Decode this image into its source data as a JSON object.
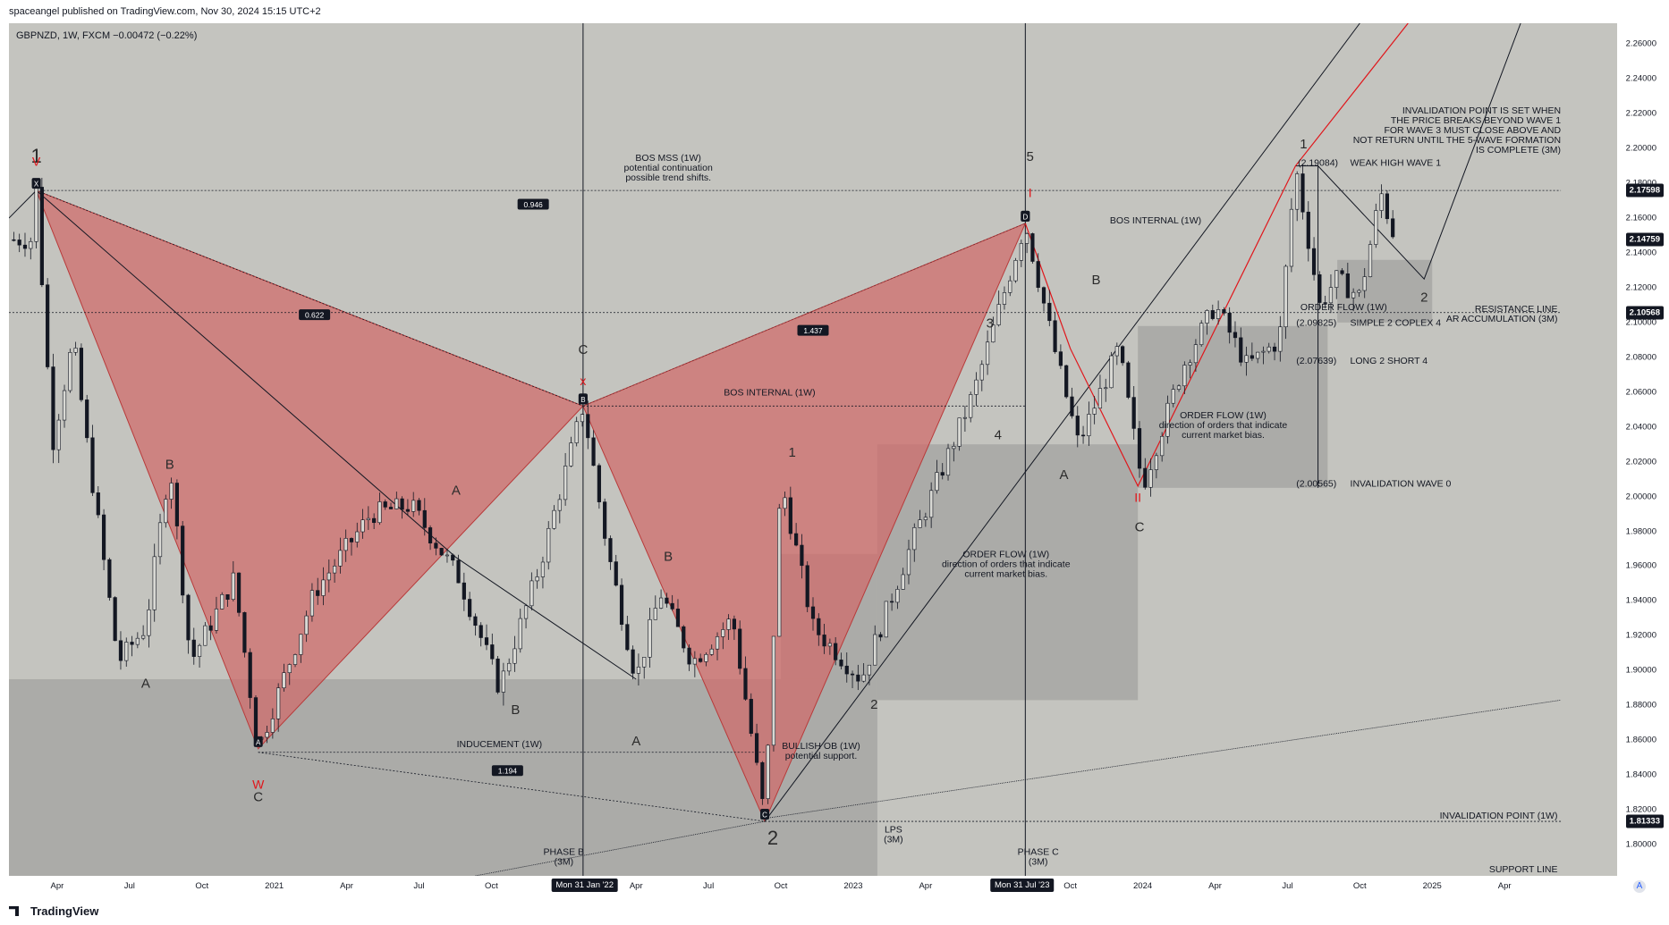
{
  "header": {
    "text": "spaceangel published on TradingView.com, Nov 30, 2024 15:15 UTC+2"
  },
  "symbol": {
    "text": "GBPNZD, 1W, FXCM  −0.00472 (−0.22%)"
  },
  "footer": {
    "logo_text": "TradingView",
    "logo_icon": "tradingview-logo-icon"
  },
  "axis_tag": "A",
  "colors": {
    "plot_bg": "#c4c4bf",
    "harmonic_fill": "#d06a6a",
    "harmonic_edge": "#b83a3a",
    "zone_fill": "#8f8f8b",
    "candle": "#131722",
    "red_line": "#e0161b",
    "label_bg": "#131722"
  },
  "chart_data": {
    "type": "candlestick",
    "title": "GBPNZD, 1W, FXCM",
    "change": "−0.00472 (−0.22%)",
    "ylim": [
      1.782,
      2.272
    ],
    "y_ticks": [
      1.8,
      1.82,
      1.84,
      1.86,
      1.88,
      1.9,
      1.92,
      1.94,
      1.96,
      1.98,
      2.0,
      2.02,
      2.04,
      2.06,
      2.08,
      2.1,
      2.12,
      2.14,
      2.16,
      2.18,
      2.2,
      2.22,
      2.24,
      2.26
    ],
    "x_ticks": [
      {
        "label": "Apr",
        "t": 0.03
      },
      {
        "label": "Jul",
        "t": 0.075
      },
      {
        "label": "Oct",
        "t": 0.12
      },
      {
        "label": "2021",
        "t": 0.165
      },
      {
        "label": "Apr",
        "t": 0.21
      },
      {
        "label": "Jul",
        "t": 0.255
      },
      {
        "label": "Oct",
        "t": 0.3
      },
      {
        "label": "Mon 31 Jan '22",
        "t": 0.358,
        "highlight": true
      },
      {
        "label": "Apr",
        "t": 0.39
      },
      {
        "label": "Jul",
        "t": 0.435
      },
      {
        "label": "Oct",
        "t": 0.48
      },
      {
        "label": "2023",
        "t": 0.525
      },
      {
        "label": "Apr",
        "t": 0.57
      },
      {
        "label": "Mon 31 Jul '23",
        "t": 0.63,
        "highlight": true
      },
      {
        "label": "Oct",
        "t": 0.66
      },
      {
        "label": "2024",
        "t": 0.705
      },
      {
        "label": "Apr",
        "t": 0.75
      },
      {
        "label": "Jul",
        "t": 0.795
      },
      {
        "label": "Oct",
        "t": 0.84
      },
      {
        "label": "2025",
        "t": 0.885
      },
      {
        "label": "Apr",
        "t": 0.93
      }
    ],
    "price_labels": [
      {
        "label": "2.17598",
        "price": 2.17598
      },
      {
        "label": "2.14759",
        "price": 2.14759
      },
      {
        "label": "2.10568",
        "price": 2.10568
      },
      {
        "label": "1.81333",
        "price": 1.81333
      }
    ],
    "pivots": [
      {
        "t": 0.017,
        "p": 2.1759
      },
      {
        "t": 0.027,
        "p": 2.03
      },
      {
        "t": 0.04,
        "p": 2.09
      },
      {
        "t": 0.05,
        "p": 2.02
      },
      {
        "t": 0.068,
        "p": 1.905
      },
      {
        "t": 0.085,
        "p": 1.925
      },
      {
        "t": 0.1,
        "p": 2.02
      },
      {
        "t": 0.113,
        "p": 1.905
      },
      {
        "t": 0.14,
        "p": 1.953
      },
      {
        "t": 0.155,
        "p": 1.855
      },
      {
        "t": 0.19,
        "p": 1.945
      },
      {
        "t": 0.225,
        "p": 1.99
      },
      {
        "t": 0.25,
        "p": 1.995
      },
      {
        "t": 0.28,
        "p": 1.953
      },
      {
        "t": 0.305,
        "p": 1.89
      },
      {
        "t": 0.33,
        "p": 1.96
      },
      {
        "t": 0.357,
        "p": 2.052
      },
      {
        "t": 0.372,
        "p": 1.97
      },
      {
        "t": 0.39,
        "p": 1.895
      },
      {
        "t": 0.405,
        "p": 1.945
      },
      {
        "t": 0.425,
        "p": 1.905
      },
      {
        "t": 0.45,
        "p": 1.93
      },
      {
        "t": 0.47,
        "p": 1.815
      },
      {
        "t": 0.48,
        "p": 2.01
      },
      {
        "t": 0.5,
        "p": 1.925
      },
      {
        "t": 0.53,
        "p": 1.895
      },
      {
        "t": 0.56,
        "p": 1.97
      },
      {
        "t": 0.6,
        "p": 2.06
      },
      {
        "t": 0.632,
        "p": 2.157
      },
      {
        "t": 0.65,
        "p": 2.085
      },
      {
        "t": 0.665,
        "p": 2.03
      },
      {
        "t": 0.69,
        "p": 2.085
      },
      {
        "t": 0.705,
        "p": 2.006
      },
      {
        "t": 0.73,
        "p": 2.075
      },
      {
        "t": 0.75,
        "p": 2.11
      },
      {
        "t": 0.77,
        "p": 2.075
      },
      {
        "t": 0.79,
        "p": 2.09
      },
      {
        "t": 0.8,
        "p": 2.19
      },
      {
        "t": 0.815,
        "p": 2.11
      },
      {
        "t": 0.825,
        "p": 2.125
      },
      {
        "t": 0.84,
        "p": 2.115
      },
      {
        "t": 0.853,
        "p": 2.175
      },
      {
        "t": 0.862,
        "p": 2.1476
      }
    ],
    "harmonic_patterns": [
      {
        "points": [
          {
            "t": 0.017,
            "p": 2.1759,
            "label": "X"
          },
          {
            "t": 0.155,
            "p": 1.855,
            "label": "A"
          },
          {
            "t": 0.357,
            "p": 2.052,
            "label": "B"
          }
        ],
        "ratios": [
          "0.622",
          "1.194"
        ]
      },
      {
        "points": [
          {
            "t": 0.357,
            "p": 2.052,
            "label": "B"
          },
          {
            "t": 0.47,
            "p": 1.8133,
            "label": "C"
          },
          {
            "t": 0.632,
            "p": 2.157,
            "label": "D"
          }
        ],
        "ratios": [
          "1.437"
        ]
      }
    ],
    "ratio_labels": [
      {
        "text": "0.946",
        "t": 0.326,
        "p": 2.168
      },
      {
        "text": "0.622",
        "t": 0.19,
        "p": 2.1045
      },
      {
        "text": "1.437",
        "t": 0.5,
        "p": 2.0955
      },
      {
        "text": "1.194",
        "t": 0.31,
        "p": 1.8425
      }
    ],
    "wave_labels": [
      {
        "text": "1",
        "t": 0.017,
        "p": 2.192,
        "size": "big"
      },
      {
        "text": "C",
        "t": 0.357,
        "p": 2.082
      },
      {
        "text": "5",
        "t": 0.635,
        "p": 2.193
      },
      {
        "text": "1",
        "t": 0.805,
        "p": 2.2
      },
      {
        "text": "B",
        "t": 0.1,
        "p": 2.016
      },
      {
        "text": "A",
        "t": 0.085,
        "p": 1.89
      },
      {
        "text": "A",
        "t": 0.278,
        "p": 2.001
      },
      {
        "text": "B",
        "t": 0.315,
        "p": 1.875
      },
      {
        "text": "A",
        "t": 0.39,
        "p": 1.857
      },
      {
        "text": "B",
        "t": 0.41,
        "p": 1.963
      },
      {
        "text": "1",
        "t": 0.487,
        "p": 2.023
      },
      {
        "text": "2",
        "t": 0.475,
        "p": 1.8,
        "size": "big"
      },
      {
        "text": "2",
        "t": 0.538,
        "p": 1.878
      },
      {
        "text": "3",
        "t": 0.61,
        "p": 2.097
      },
      {
        "text": "4",
        "t": 0.615,
        "p": 2.033
      },
      {
        "text": "B",
        "t": 0.676,
        "p": 2.122
      },
      {
        "text": "A",
        "t": 0.656,
        "p": 2.01
      },
      {
        "text": "C",
        "t": 0.703,
        "p": 1.98
      },
      {
        "text": "2",
        "t": 0.88,
        "p": 2.112
      },
      {
        "text": "C",
        "t": 0.155,
        "p": 1.825
      }
    ],
    "red_markers": [
      {
        "text": "V",
        "t": 0.017,
        "p": 2.19
      },
      {
        "text": "x",
        "t": 0.357,
        "p": 2.064
      },
      {
        "text": "W",
        "t": 0.155,
        "p": 1.832
      },
      {
        "text": "I",
        "t": 0.635,
        "p": 2.172
      },
      {
        "text": "II",
        "t": 0.702,
        "p": 1.997
      }
    ],
    "annotations": [
      {
        "text": "BOS MSS (1W)\npotential continuation\npossible trend shifts.",
        "t": 0.41,
        "p": 2.193
      },
      {
        "text": "BOS INTERNAL (1W)",
        "t": 0.713,
        "p": 2.157
      },
      {
        "text": "BOS INTERNAL (1W)",
        "t": 0.473,
        "p": 2.058
      },
      {
        "text": "INDUCEMENT (1W)",
        "t": 0.305,
        "p": 1.856
      },
      {
        "text": "BULLISH OB (1W)\npotential support.",
        "t": 0.505,
        "p": 1.855
      },
      {
        "text": "ORDER FLOW (1W)\ndirection of orders that indicate\ncurrent market bias.",
        "t": 0.62,
        "p": 1.965
      },
      {
        "text": "ORDER FLOW (1W)\ndirection of orders that indicate\ncurrent market bias.",
        "t": 0.755,
        "p": 2.045
      },
      {
        "text": "ORDER FLOW (1W)",
        "t": 0.83,
        "p": 2.107
      },
      {
        "text": "PHASE B\n(3M)",
        "t": 0.345,
        "p": 1.794
      },
      {
        "text": "PHASE C\n(3M)",
        "t": 0.64,
        "p": 1.794
      },
      {
        "text": "LPS\n(3M)",
        "t": 0.55,
        "p": 1.807
      },
      {
        "text": "INVALIDATION POINT IS SET WHEN\nTHE PRICE BREAKS BEYOND WAVE 1\nFOR WAVE 3 MUST CLOSE ABOVE AND\nNOT RETURN UNTIL THE 5-WAVE FORMATION\nIS COMPLETE (3M)",
        "t": 0.965,
        "p": 2.22,
        "anchor": "end"
      },
      {
        "text": "WEAK HIGH WAVE 1",
        "t": 0.834,
        "p": 2.19,
        "anchor": "start"
      },
      {
        "text": "(2.19084)",
        "t": 0.814,
        "p": 2.19,
        "anchor": "middle"
      },
      {
        "text": "(2.09825)",
        "t": 0.813,
        "p": 2.0982,
        "anchor": "middle"
      },
      {
        "text": "SIMPLE 2 COPLEX 4",
        "t": 0.834,
        "p": 2.0982,
        "anchor": "start"
      },
      {
        "text": "(2.07639)",
        "t": 0.813,
        "p": 2.0764,
        "anchor": "middle"
      },
      {
        "text": "LONG 2 SHORT 4",
        "t": 0.834,
        "p": 2.0764,
        "anchor": "start"
      },
      {
        "text": "(2.00565)",
        "t": 0.813,
        "p": 2.0057,
        "anchor": "middle"
      },
      {
        "text": "INVALIDATION WAVE 0",
        "t": 0.834,
        "p": 2.0057,
        "anchor": "start"
      },
      {
        "text": "RESISTANCE LINE\nAR ACCUMULATION (3M)",
        "t": 0.963,
        "p": 2.106,
        "anchor": "end"
      },
      {
        "text": "INVALIDATION POINT (1W)",
        "t": 0.963,
        "p": 1.815,
        "anchor": "end"
      },
      {
        "text": "SUPPORT LINE",
        "t": 0.963,
        "p": 1.784,
        "anchor": "end"
      }
    ],
    "zones": [
      {
        "t1": 0.0,
        "t2": 0.54,
        "p1": 1.782,
        "p2": 1.895
      },
      {
        "t1": 0.48,
        "t2": 0.54,
        "p1": 1.895,
        "p2": 1.967
      },
      {
        "t1": 0.54,
        "t2": 0.702,
        "p1": 1.883,
        "p2": 2.03
      },
      {
        "t1": 0.702,
        "t2": 0.82,
        "p1": 2.005,
        "p2": 2.098
      },
      {
        "t1": 0.826,
        "t2": 0.885,
        "p1": 2.1,
        "p2": 2.136
      }
    ],
    "vertical_lines": [
      0.357,
      0.632
    ],
    "hlines_dotted": [
      {
        "t1": 0.017,
        "t2": 0.965,
        "p": 2.1759
      },
      {
        "t1": 0.0,
        "t2": 0.965,
        "p": 2.1057
      },
      {
        "t1": 0.155,
        "t2": 0.47,
        "p": 1.853
      },
      {
        "t1": 0.47,
        "t2": 0.965,
        "p": 1.8133
      },
      {
        "t1": 0.357,
        "t2": 0.632,
        "p": 2.052
      }
    ]
  }
}
